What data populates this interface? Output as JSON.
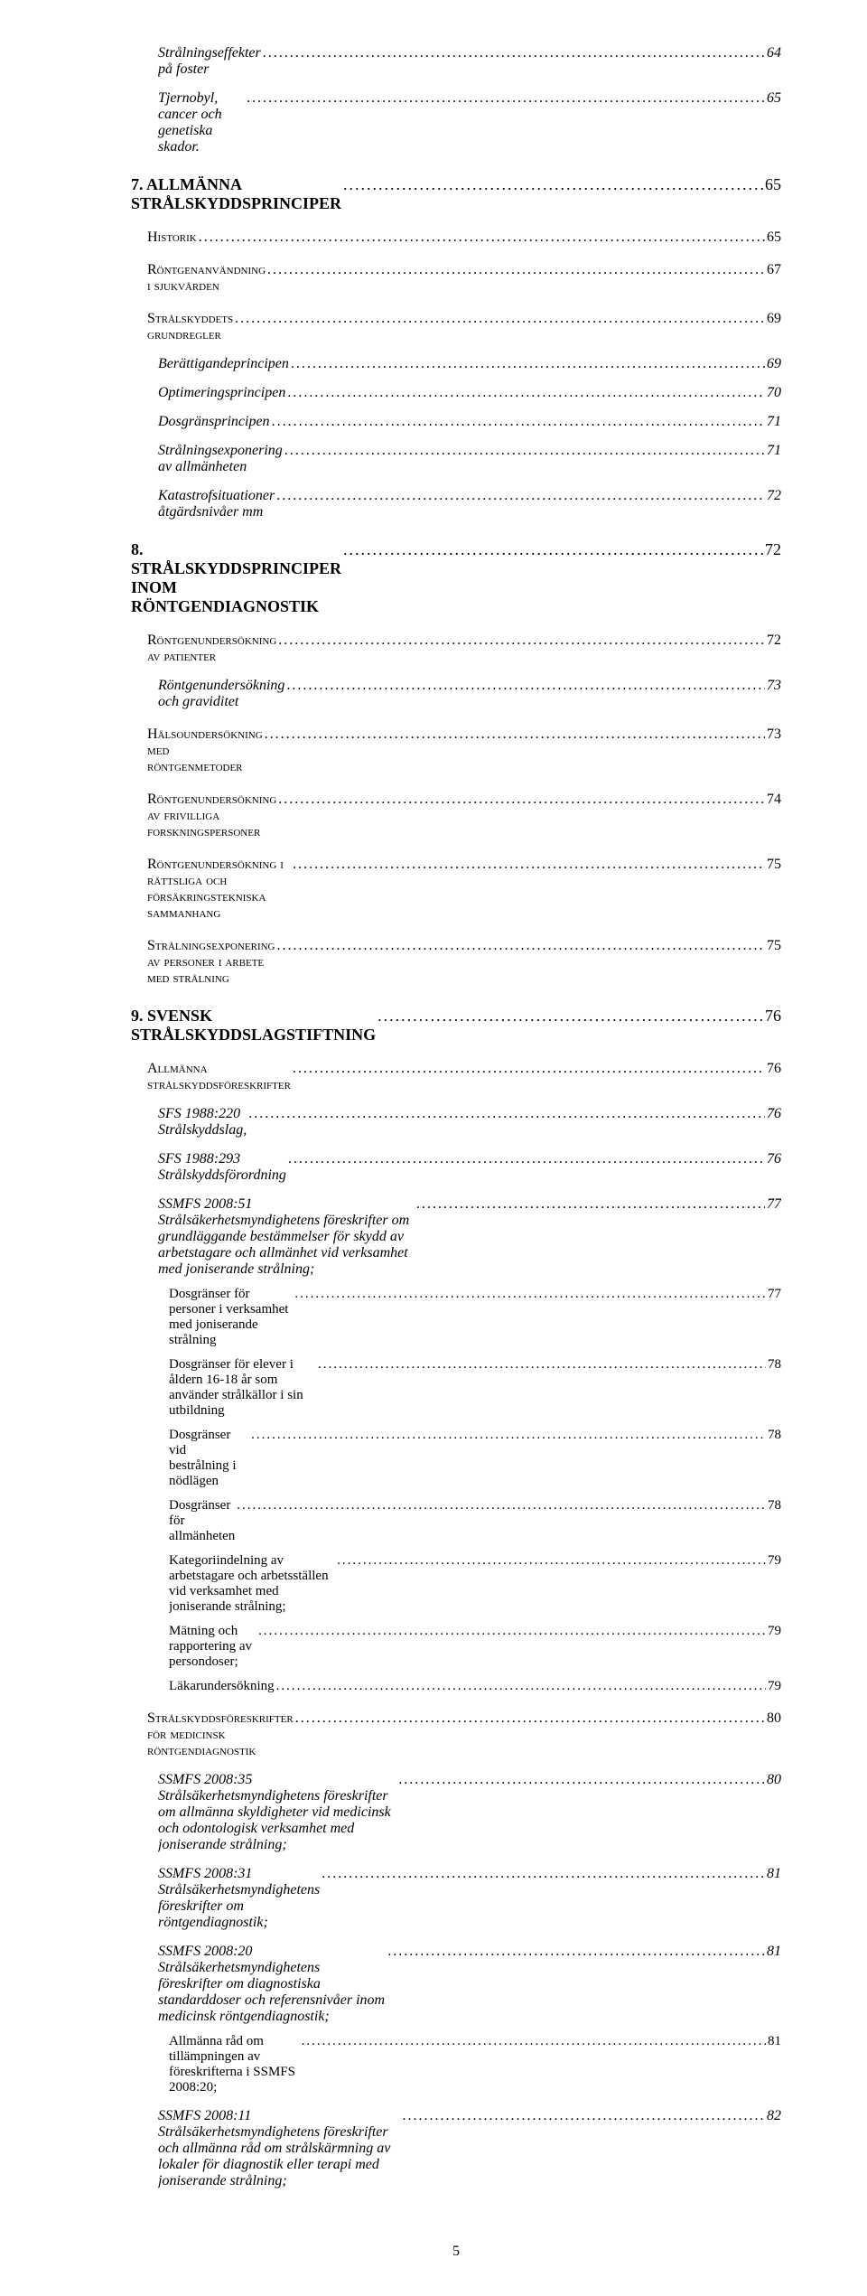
{
  "entries": [
    {
      "level": "it",
      "label": "Strålningseffekter på foster",
      "page": "64"
    },
    {
      "level": "it",
      "label": "Tjernobyl, cancer och genetiska skador.",
      "page": "65"
    },
    {
      "level": "h1",
      "label": "7. ALLMÄNNA STRÅLSKYDDSPRINCIPER",
      "page": "65"
    },
    {
      "level": "sc",
      "label": "Historik",
      "page": "65"
    },
    {
      "level": "sc",
      "label": "Röntgenanvändning i sjukvården",
      "page": "67"
    },
    {
      "level": "sc",
      "label": "Strålskyddets grundregler",
      "page": "69"
    },
    {
      "level": "it",
      "label": "Berättigandeprincipen",
      "page": "69"
    },
    {
      "level": "it",
      "label": "Optimeringsprincipen",
      "page": "70"
    },
    {
      "level": "it",
      "label": "Dosgränsprincipen",
      "page": "71"
    },
    {
      "level": "it",
      "label": "Strålningsexponering av allmänheten",
      "page": "71"
    },
    {
      "level": "it",
      "label": "Katastrofsituationer åtgärdsnivåer mm",
      "page": "72"
    },
    {
      "level": "h1",
      "label": "8. STRÅLSKYDDSPRINCIPER INOM RÖNTGENDIAGNOSTIK",
      "page": "72"
    },
    {
      "level": "sc",
      "label": "Röntgenundersökning av patienter",
      "page": "72"
    },
    {
      "level": "it",
      "label": "Röntgenundersökning och graviditet",
      "page": "73"
    },
    {
      "level": "sc",
      "label": "Hälsoundersökning med röntgenmetoder",
      "page": "73"
    },
    {
      "level": "sc",
      "label": "Röntgenundersökning av frivilliga forskningspersoner",
      "page": "74"
    },
    {
      "level": "sc",
      "label": "Röntgenundersökning i rättsliga och försäkringstekniska sammanhang",
      "page": "75"
    },
    {
      "level": "sc",
      "label": "Strålningsexponering av personer i arbete med strålning",
      "page": "75"
    },
    {
      "level": "h1",
      "label": "9. SVENSK STRÅLSKYDDSLAGSTIFTNING",
      "page": "76"
    },
    {
      "level": "sc",
      "label": "Allmänna strålskyddsföreskrifter",
      "page": "76"
    },
    {
      "level": "it",
      "label": "SFS 1988:220 Strålskyddslag,",
      "page": "76"
    },
    {
      "level": "it",
      "label": "SFS 1988:293 Strålskyddsförordning",
      "page": "76"
    },
    {
      "level": "it-wrap",
      "label": "SSMFS 2008:51 Strålsäkerhetsmyndighetens föreskrifter om grundläggande bestämmelser för skydd av arbetstagare och allmänhet vid verksamhet med joniserande strålning;",
      "page": "77"
    },
    {
      "level": "sm",
      "label": "Dosgränser för personer i verksamhet med joniserande strålning",
      "page": "77"
    },
    {
      "level": "sm",
      "label": "Dosgränser för elever i åldern 16-18 år som använder strålkällor i sin utbildning",
      "page": "78"
    },
    {
      "level": "sm",
      "label": "Dosgränser vid bestrålning i nödlägen",
      "page": "78"
    },
    {
      "level": "sm",
      "label": "Dosgränser för allmänheten",
      "page": "78"
    },
    {
      "level": "sm",
      "label": "Kategoriindelning av arbetstagare och arbetsställen vid verksamhet med joniserande strålning;",
      "page": "79"
    },
    {
      "level": "sm",
      "label": "Mätning och rapportering av persondoser;",
      "page": "79"
    },
    {
      "level": "sm",
      "label": "Läkarundersökning",
      "page": "79"
    },
    {
      "level": "sc",
      "label": "Strålskyddsföreskrifter för medicinsk röntgendiagnostik",
      "page": "80"
    },
    {
      "level": "it-wrap",
      "label": "SSMFS 2008:35 Strålsäkerhetsmyndighetens föreskrifter om allmänna skyldigheter vid medicinsk och odontologisk verksamhet med joniserande strålning;",
      "page": "80"
    },
    {
      "level": "it",
      "label": "SSMFS 2008:31  Strålsäkerhetsmyndighetens föreskrifter om röntgendiagnostik;",
      "page": "81"
    },
    {
      "level": "it-wrap",
      "label": "SSMFS 2008:20  Strålsäkerhetsmyndighetens föreskrifter om diagnostiska standarddoser och referensnivåer inom medicinsk röntgendiagnostik;",
      "page": "81"
    },
    {
      "level": "sm",
      "label": "Allmänna råd om tillämpningen av föreskrifterna i SSMFS 2008:20;",
      "page": "81"
    },
    {
      "level": "it-wrap",
      "label": "SSMFS 2008:11  Strålsäkerhetsmyndighetens föreskrifter och allmänna råd om strålskärmning av lokaler för diagnostik eller terapi med joniserande strålning;",
      "page": "82"
    }
  ],
  "pageNumber": "5"
}
